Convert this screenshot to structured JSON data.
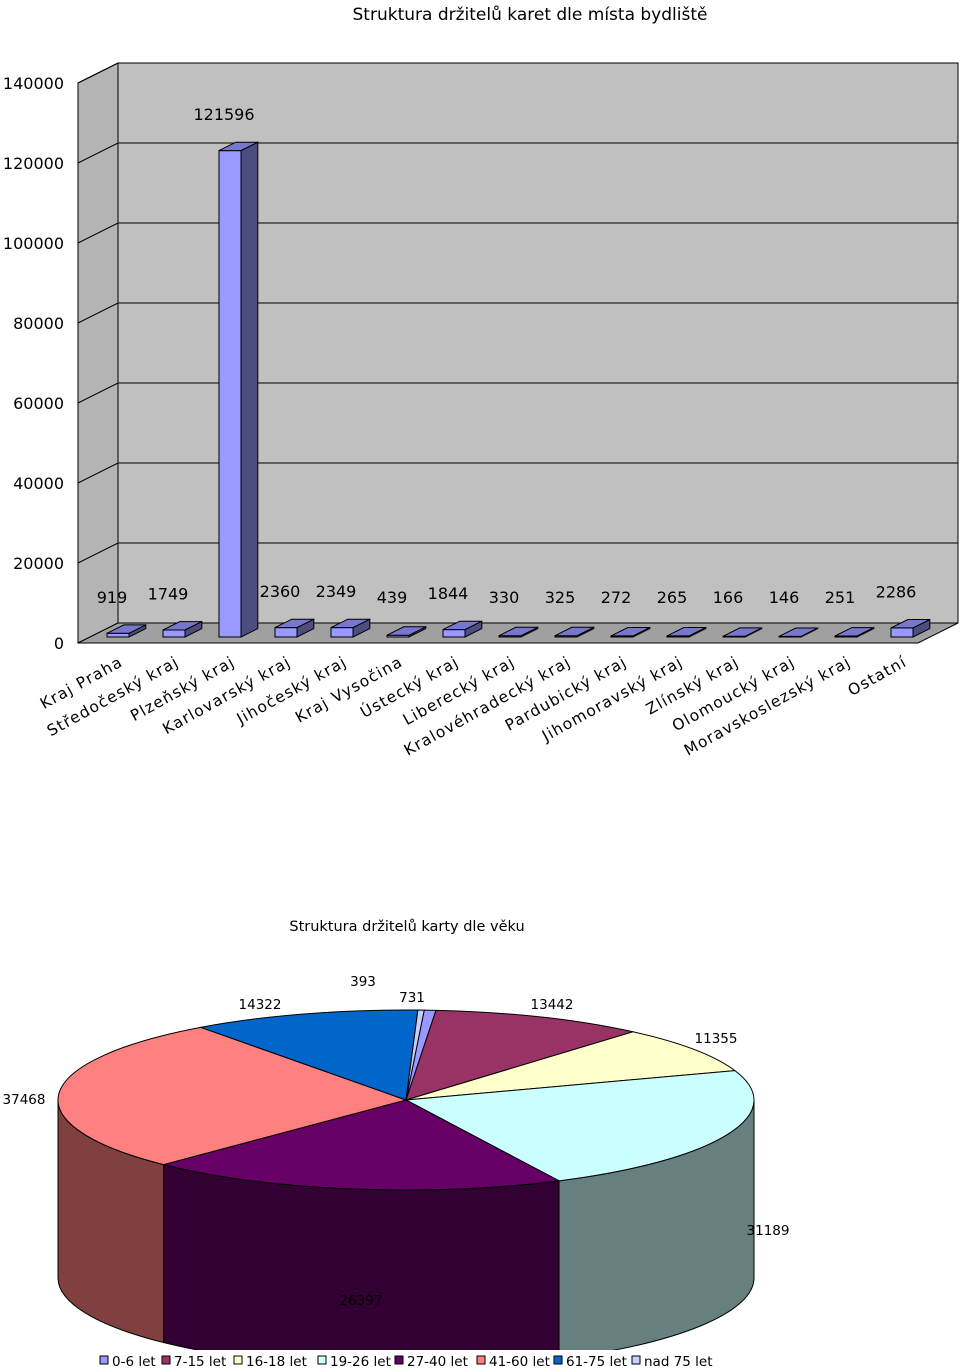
{
  "chart_data": [
    {
      "type": "bar",
      "title": "Struktura držitelů karet dle místa bydliště",
      "xlabel": "",
      "ylabel": "",
      "ylim": [
        0,
        140000
      ],
      "yticks": [
        0,
        20000,
        40000,
        60000,
        80000,
        100000,
        120000,
        140000
      ],
      "categories": [
        "Kraj Praha",
        "Středočeský kraj",
        "Plzeňský kraj",
        "Karlovarský kraj",
        "Jihočeský kraj",
        "Kraj Vysočina",
        "Ústecký kraj",
        "Liberecký kraj",
        "Kralovéhradecký kraj",
        "Pardubický kraj",
        "Jihomoravský kraj",
        "Zlínský kraj",
        "Olomoucký kraj",
        "Moravskoslezský kraj",
        "Ostatní"
      ],
      "values": [
        919,
        1749,
        121596,
        2360,
        2349,
        439,
        1844,
        330,
        325,
        272,
        265,
        166,
        146,
        251,
        2286
      ],
      "data_labels": [
        "919",
        "1749",
        "121596",
        "2360",
        "2349",
        "439",
        "1844",
        "330",
        "325",
        "272",
        "265",
        "166",
        "146",
        "251",
        "2286"
      ],
      "grid": true,
      "style": "3d",
      "colors": {
        "bar_front": "#9999ff",
        "bar_side": "#4d4d80",
        "bar_top": "#7777cc",
        "wall": "#c0c0c0",
        "floor": "#a0a0a0"
      }
    },
    {
      "type": "pie",
      "title": "Struktura držitelů karty dle věku",
      "style": "3d",
      "legend_position": "bottom",
      "categories": [
        "0-6 let",
        "7-15 let",
        "16-18 let",
        "19-26 let",
        "27-40 let",
        "41-60 let",
        "61-75 let",
        "nad 75 let"
      ],
      "values": [
        731,
        13442,
        11355,
        31189,
        26397,
        37468,
        14322,
        393
      ],
      "data_labels": [
        "731",
        "13442",
        "11355",
        "31189",
        "26397",
        "37468",
        "14322",
        "393"
      ],
      "colors": [
        "#9999ff",
        "#993366",
        "#ffffcc",
        "#ccffff",
        "#660066",
        "#ff8080",
        "#0066cc",
        "#ccccff"
      ]
    }
  ]
}
